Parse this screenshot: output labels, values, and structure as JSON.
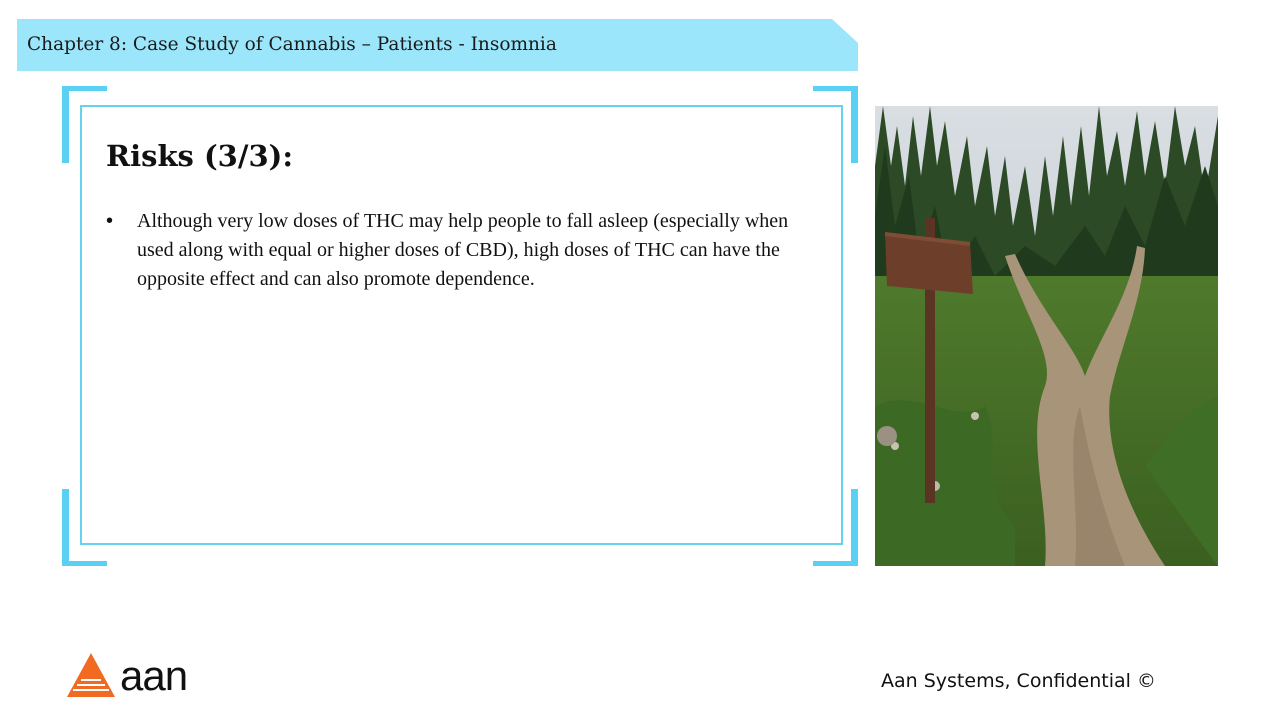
{
  "header": {
    "title": "Chapter 8: Case Study of Cannabis – Patients - Insomnia"
  },
  "slide": {
    "heading": "Risks (3/3):",
    "bullets": [
      {
        "marker": "•",
        "text": "Although very low doses of THC may help people to fall asleep (especially when used along with equal or higher doses of CBD), high doses of THC can have the opposite effect and can also promote dependence."
      }
    ]
  },
  "photo": {
    "subject": "forest-trail-fork-with-blank-signpost"
  },
  "logo": {
    "wordmark": "aan"
  },
  "footer": {
    "text": "Aan Systems, Confidential ©"
  },
  "colors": {
    "header_band": "#9be6fa",
    "frame_accent": "#5ad0f2",
    "box_border": "#66d3ee",
    "logo_orange": "#f26a22"
  }
}
